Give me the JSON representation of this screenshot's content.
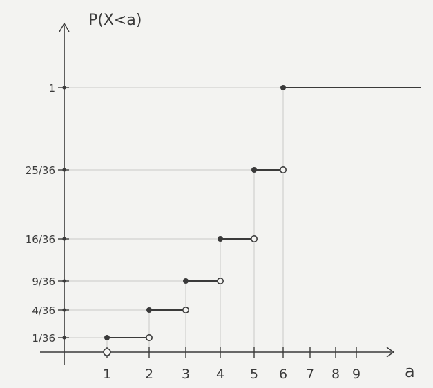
{
  "chart_data": {
    "type": "line",
    "title": "",
    "ylabel": "P(X<a)",
    "xlabel": "a",
    "x_ticks": [
      "1",
      "2",
      "3",
      "4",
      "5",
      "6",
      "7",
      "8",
      "9"
    ],
    "y_ticks": [
      {
        "label": "1/36",
        "value": 0.0278
      },
      {
        "label": "4/36",
        "value": 0.1111
      },
      {
        "label": "9/36",
        "value": 0.25
      },
      {
        "label": "16/36",
        "value": 0.4444
      },
      {
        "label": "25/36",
        "value": 0.6944
      },
      {
        "label": "1",
        "value": 1
      }
    ],
    "steps": [
      {
        "x_start": 1,
        "x_end": 2,
        "y": 0.0278
      },
      {
        "x_start": 2,
        "x_end": 3,
        "y": 0.1111
      },
      {
        "x_start": 3,
        "x_end": 4,
        "y": 0.25
      },
      {
        "x_start": 4,
        "x_end": 5,
        "y": 0.4444
      },
      {
        "x_start": 5,
        "x_end": 6,
        "y": 0.6944
      },
      {
        "x_start": 6,
        "x_end": 10,
        "y": 1
      }
    ],
    "open_points": [
      {
        "x": 1,
        "y": 0
      }
    ],
    "xlim": [
      0,
      10
    ],
    "ylim": [
      0,
      1.1
    ],
    "grid": false,
    "legend": "none",
    "ink_color": "#3a3a3a",
    "guide_color": "#c9c9c6"
  }
}
